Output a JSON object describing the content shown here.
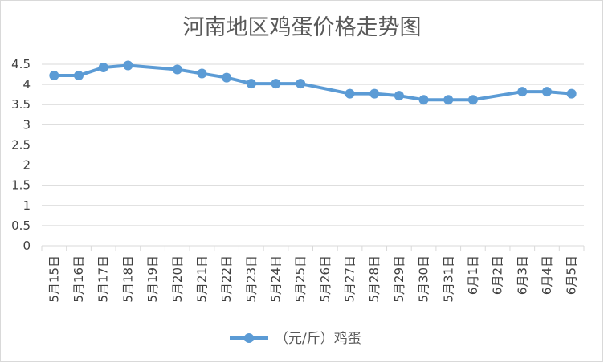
{
  "chart_data": {
    "type": "line",
    "title": "河南地区鸡蛋价格走势图",
    "xlabel": "",
    "ylabel": "",
    "categories": [
      "5月15日",
      "5月16日",
      "5月17日",
      "5月18日",
      "5月19日",
      "5月20日",
      "5月21日",
      "5月22日",
      "5月23日",
      "5月24日",
      "5月25日",
      "5月26日",
      "5月27日",
      "5月28日",
      "5月29日",
      "5月30日",
      "5月31日",
      "6月1日",
      "6月2日",
      "6月3日",
      "6月4日",
      "6月5日"
    ],
    "yticks": [
      "0",
      "0.5",
      "1",
      "1.5",
      "2",
      "2.5",
      "3",
      "3.5",
      "4",
      "4.5"
    ],
    "ylim": [
      0,
      4.5
    ],
    "ystep": 0.5,
    "series": [
      {
        "name": "（元/斤）鸡蛋",
        "color": "#5b9bd5",
        "points": [
          {
            "x": "5月15日",
            "y": 4.22
          },
          {
            "x": "5月16日",
            "y": 4.22
          },
          {
            "x": "5月17日",
            "y": 4.42
          },
          {
            "x": "5月18日",
            "y": 4.47
          },
          {
            "x": "5月20日",
            "y": 4.37
          },
          {
            "x": "5月21日",
            "y": 4.27
          },
          {
            "x": "5月22日",
            "y": 4.17
          },
          {
            "x": "5月23日",
            "y": 4.02
          },
          {
            "x": "5月24日",
            "y": 4.02
          },
          {
            "x": "5月25日",
            "y": 4.02
          },
          {
            "x": "5月27日",
            "y": 3.77
          },
          {
            "x": "5月28日",
            "y": 3.77
          },
          {
            "x": "5月29日",
            "y": 3.72
          },
          {
            "x": "5月30日",
            "y": 3.62
          },
          {
            "x": "5月31日",
            "y": 3.62
          },
          {
            "x": "6月1日",
            "y": 3.62
          },
          {
            "x": "6月3日",
            "y": 3.82
          },
          {
            "x": "6月4日",
            "y": 3.82
          },
          {
            "x": "6月5日",
            "y": 3.77
          }
        ]
      }
    ],
    "grid": true,
    "gridColor": "#d9d9d9",
    "legend": "bottom-center"
  }
}
